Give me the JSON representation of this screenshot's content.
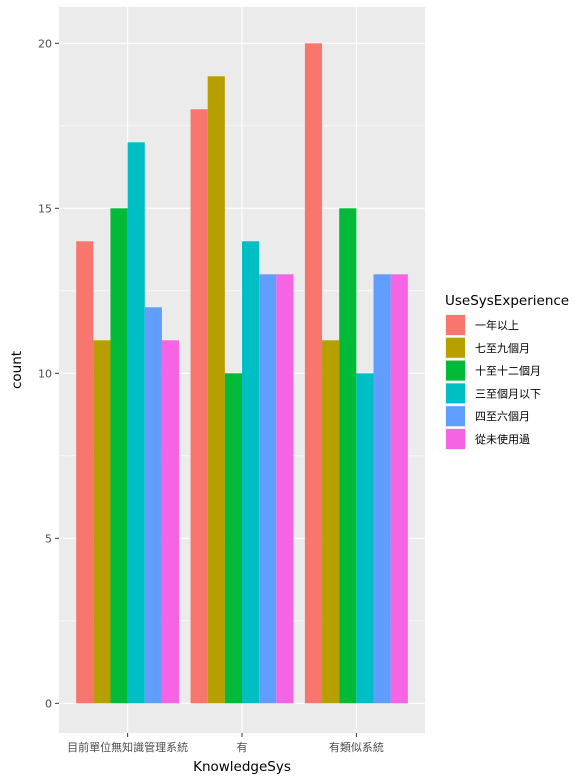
{
  "chart_data": {
    "type": "bar",
    "xlabel": "KnowledgeSys",
    "ylabel": "count",
    "categories": [
      "目前單位無知識管理系統",
      "有",
      "有類似系統"
    ],
    "yticks": [
      "0",
      "5",
      "10",
      "15",
      "20"
    ],
    "ylim": [
      -0.9,
      21.1
    ],
    "grid": true,
    "legend": {
      "title": "UseSysExperience",
      "position": "right"
    },
    "series": [
      {
        "name": "一年以上",
        "color": "#F8766D",
        "values": [
          14,
          18,
          20
        ]
      },
      {
        "name": "七至九個月",
        "color": "#B79F00",
        "values": [
          11,
          19,
          11
        ]
      },
      {
        "name": "十至十二個月",
        "color": "#00BA38",
        "values": [
          15,
          10,
          15
        ]
      },
      {
        "name": "三至個月以下",
        "color": "#00BFC4",
        "values": [
          17,
          14,
          10
        ]
      },
      {
        "name": "四至六個月",
        "color": "#619CFF",
        "values": [
          12,
          13,
          13
        ]
      },
      {
        "name": "從未使用過",
        "color": "#F564E3",
        "values": [
          11,
          13,
          13
        ]
      }
    ]
  }
}
